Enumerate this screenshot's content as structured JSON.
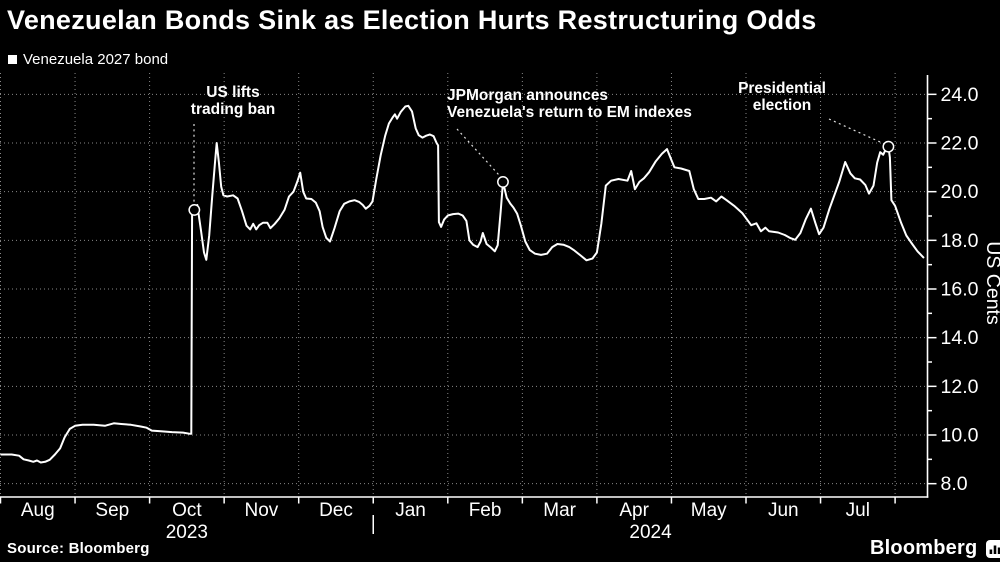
{
  "title": "Venezuelan Bonds Sink as Election Hurts Restructuring Odds",
  "legend": {
    "label": "Venezuela 2027 bond"
  },
  "source": "Source: Bloomberg",
  "brand": {
    "name": "Bloomberg",
    "icon": "bloomberg-terminal-icon"
  },
  "colors": {
    "background": "#000000",
    "line": "#ffffff",
    "text": "#ffffff",
    "grid": "#aaaaaa"
  },
  "chart_data": {
    "type": "line",
    "series_name": "Venezuela 2027 bond",
    "x_unit": "months since Aug 1 2023",
    "grid": true,
    "x_axis": {
      "months": [
        "Aug",
        "Sep",
        "Oct",
        "Nov",
        "Dec",
        "Jan",
        "Feb",
        "Mar",
        "Apr",
        "May",
        "Jun",
        "Jul"
      ],
      "year_labels": [
        {
          "label": "2023",
          "span_t": [
            0,
            5
          ]
        },
        {
          "label": "2024",
          "span_t": [
            5,
            12.44
          ]
        }
      ]
    },
    "y_axis": {
      "label": "US Cents",
      "min": 8,
      "max": 24,
      "major_step": 2,
      "side": "right",
      "ticks": [
        {
          "v": 24,
          "label": "24.0"
        },
        {
          "v": 22,
          "label": "22.0"
        },
        {
          "v": 20,
          "label": "20.0"
        },
        {
          "v": 18,
          "label": "18.0"
        },
        {
          "v": 16,
          "label": "16.0"
        },
        {
          "v": 14,
          "label": "14.0"
        },
        {
          "v": 12,
          "label": "12.0"
        },
        {
          "v": 10,
          "label": "10.0"
        },
        {
          "v": 8,
          "label": "8.0"
        }
      ],
      "minor_ticks": [
        23,
        21,
        19,
        17,
        15,
        13,
        11,
        9
      ]
    },
    "annotations": [
      {
        "line1": "US lifts",
        "line2": "trading ban",
        "t": 2.6,
        "value": 19.25
      },
      {
        "line1": "JPMorgan announces",
        "line2": "Venezuela's return to EM indexes",
        "t": 6.74,
        "value": 20.4
      },
      {
        "line1": "Presidential",
        "line2": "election",
        "t": 11.91,
        "value": 21.85
      }
    ],
    "points": [
      [
        0.01,
        9.2
      ],
      [
        0.15,
        9.2
      ],
      [
        0.25,
        9.15
      ],
      [
        0.31,
        9.0
      ],
      [
        0.38,
        8.95
      ],
      [
        0.44,
        8.9
      ],
      [
        0.49,
        8.95
      ],
      [
        0.54,
        8.87
      ],
      [
        0.6,
        8.9
      ],
      [
        0.66,
        8.98
      ],
      [
        0.73,
        9.2
      ],
      [
        0.8,
        9.45
      ],
      [
        0.86,
        9.9
      ],
      [
        0.93,
        10.25
      ],
      [
        1.0,
        10.38
      ],
      [
        1.1,
        10.42
      ],
      [
        1.25,
        10.42
      ],
      [
        1.4,
        10.38
      ],
      [
        1.52,
        10.48
      ],
      [
        1.62,
        10.45
      ],
      [
        1.75,
        10.42
      ],
      [
        1.88,
        10.35
      ],
      [
        1.96,
        10.3
      ],
      [
        2.03,
        10.18
      ],
      [
        2.15,
        10.15
      ],
      [
        2.3,
        10.12
      ],
      [
        2.45,
        10.1
      ],
      [
        2.54,
        10.05
      ],
      [
        2.56,
        10.05
      ],
      [
        2.57,
        19.3
      ],
      [
        2.6,
        19.25
      ],
      [
        2.64,
        19.45
      ],
      [
        2.69,
        18.4
      ],
      [
        2.73,
        17.5
      ],
      [
        2.76,
        17.2
      ],
      [
        2.8,
        18.2
      ],
      [
        2.84,
        19.8
      ],
      [
        2.88,
        21.3
      ],
      [
        2.9,
        22.0
      ],
      [
        2.93,
        21.2
      ],
      [
        2.96,
        20.2
      ],
      [
        2.99,
        19.85
      ],
      [
        3.04,
        19.8
      ],
      [
        3.12,
        19.85
      ],
      [
        3.18,
        19.72
      ],
      [
        3.24,
        19.2
      ],
      [
        3.3,
        18.6
      ],
      [
        3.35,
        18.45
      ],
      [
        3.39,
        18.68
      ],
      [
        3.43,
        18.45
      ],
      [
        3.47,
        18.62
      ],
      [
        3.52,
        18.72
      ],
      [
        3.58,
        18.72
      ],
      [
        3.62,
        18.5
      ],
      [
        3.68,
        18.68
      ],
      [
        3.74,
        18.9
      ],
      [
        3.81,
        19.25
      ],
      [
        3.87,
        19.8
      ],
      [
        3.93,
        20.0
      ],
      [
        3.98,
        20.4
      ],
      [
        4.02,
        20.78
      ],
      [
        4.06,
        20.0
      ],
      [
        4.1,
        19.72
      ],
      [
        4.17,
        19.7
      ],
      [
        4.23,
        19.55
      ],
      [
        4.28,
        19.2
      ],
      [
        4.32,
        18.55
      ],
      [
        4.37,
        18.1
      ],
      [
        4.42,
        17.95
      ],
      [
        4.48,
        18.5
      ],
      [
        4.55,
        19.2
      ],
      [
        4.61,
        19.5
      ],
      [
        4.68,
        19.6
      ],
      [
        4.75,
        19.65
      ],
      [
        4.81,
        19.58
      ],
      [
        4.86,
        19.45
      ],
      [
        4.9,
        19.3
      ],
      [
        4.95,
        19.42
      ],
      [
        4.99,
        19.6
      ],
      [
        5.04,
        20.5
      ],
      [
        5.1,
        21.5
      ],
      [
        5.16,
        22.3
      ],
      [
        5.21,
        22.8
      ],
      [
        5.26,
        23.05
      ],
      [
        5.29,
        23.18
      ],
      [
        5.32,
        23.0
      ],
      [
        5.37,
        23.28
      ],
      [
        5.43,
        23.5
      ],
      [
        5.47,
        23.53
      ],
      [
        5.52,
        23.3
      ],
      [
        5.57,
        22.6
      ],
      [
        5.61,
        22.32
      ],
      [
        5.66,
        22.22
      ],
      [
        5.71,
        22.3
      ],
      [
        5.76,
        22.35
      ],
      [
        5.81,
        22.28
      ],
      [
        5.85,
        22.0
      ],
      [
        5.87,
        21.9
      ],
      [
        5.88,
        18.75
      ],
      [
        5.91,
        18.55
      ],
      [
        5.95,
        18.85
      ],
      [
        6.0,
        19.02
      ],
      [
        6.07,
        19.08
      ],
      [
        6.14,
        19.1
      ],
      [
        6.2,
        19.02
      ],
      [
        6.25,
        18.8
      ],
      [
        6.29,
        18.0
      ],
      [
        6.34,
        17.82
      ],
      [
        6.4,
        17.72
      ],
      [
        6.44,
        17.95
      ],
      [
        6.47,
        18.3
      ],
      [
        6.52,
        17.85
      ],
      [
        6.58,
        17.7
      ],
      [
        6.63,
        17.55
      ],
      [
        6.67,
        17.8
      ],
      [
        6.71,
        19.2
      ],
      [
        6.74,
        20.4
      ],
      [
        6.79,
        19.75
      ],
      [
        6.84,
        19.5
      ],
      [
        6.88,
        19.35
      ],
      [
        6.93,
        19.1
      ],
      [
        6.98,
        18.6
      ],
      [
        7.04,
        17.95
      ],
      [
        7.1,
        17.6
      ],
      [
        7.17,
        17.45
      ],
      [
        7.25,
        17.4
      ],
      [
        7.33,
        17.45
      ],
      [
        7.4,
        17.72
      ],
      [
        7.47,
        17.85
      ],
      [
        7.55,
        17.82
      ],
      [
        7.63,
        17.72
      ],
      [
        7.7,
        17.58
      ],
      [
        7.78,
        17.38
      ],
      [
        7.86,
        17.18
      ],
      [
        7.94,
        17.25
      ],
      [
        8.0,
        17.5
      ],
      [
        8.06,
        18.7
      ],
      [
        8.12,
        20.25
      ],
      [
        8.19,
        20.45
      ],
      [
        8.29,
        20.52
      ],
      [
        8.41,
        20.45
      ],
      [
        8.46,
        20.85
      ],
      [
        8.51,
        20.1
      ],
      [
        8.57,
        20.4
      ],
      [
        8.63,
        20.55
      ],
      [
        8.7,
        20.8
      ],
      [
        8.79,
        21.25
      ],
      [
        8.87,
        21.55
      ],
      [
        8.94,
        21.75
      ],
      [
        9.0,
        21.3
      ],
      [
        9.04,
        21.0
      ],
      [
        9.13,
        20.95
      ],
      [
        9.24,
        20.85
      ],
      [
        9.3,
        20.1
      ],
      [
        9.36,
        19.7
      ],
      [
        9.44,
        19.7
      ],
      [
        9.53,
        19.75
      ],
      [
        9.6,
        19.6
      ],
      [
        9.67,
        19.8
      ],
      [
        9.74,
        19.65
      ],
      [
        9.84,
        19.42
      ],
      [
        9.95,
        19.12
      ],
      [
        10.07,
        18.62
      ],
      [
        10.14,
        18.7
      ],
      [
        10.2,
        18.37
      ],
      [
        10.26,
        18.52
      ],
      [
        10.31,
        18.37
      ],
      [
        10.43,
        18.32
      ],
      [
        10.52,
        18.22
      ],
      [
        10.59,
        18.1
      ],
      [
        10.66,
        18.02
      ],
      [
        10.73,
        18.3
      ],
      [
        10.8,
        18.85
      ],
      [
        10.87,
        19.3
      ],
      [
        10.93,
        18.72
      ],
      [
        10.98,
        18.25
      ],
      [
        11.04,
        18.52
      ],
      [
        11.12,
        19.3
      ],
      [
        11.25,
        20.4
      ],
      [
        11.33,
        21.22
      ],
      [
        11.4,
        20.75
      ],
      [
        11.46,
        20.55
      ],
      [
        11.53,
        20.5
      ],
      [
        11.6,
        20.28
      ],
      [
        11.65,
        19.92
      ],
      [
        11.71,
        20.25
      ],
      [
        11.76,
        21.2
      ],
      [
        11.8,
        21.62
      ],
      [
        11.84,
        21.52
      ],
      [
        11.88,
        21.78
      ],
      [
        11.91,
        21.85
      ],
      [
        11.93,
        21.4
      ],
      [
        11.95,
        19.65
      ],
      [
        12.0,
        19.42
      ],
      [
        12.08,
        18.72
      ],
      [
        12.15,
        18.2
      ],
      [
        12.23,
        17.85
      ],
      [
        12.3,
        17.55
      ],
      [
        12.38,
        17.3
      ]
    ]
  }
}
